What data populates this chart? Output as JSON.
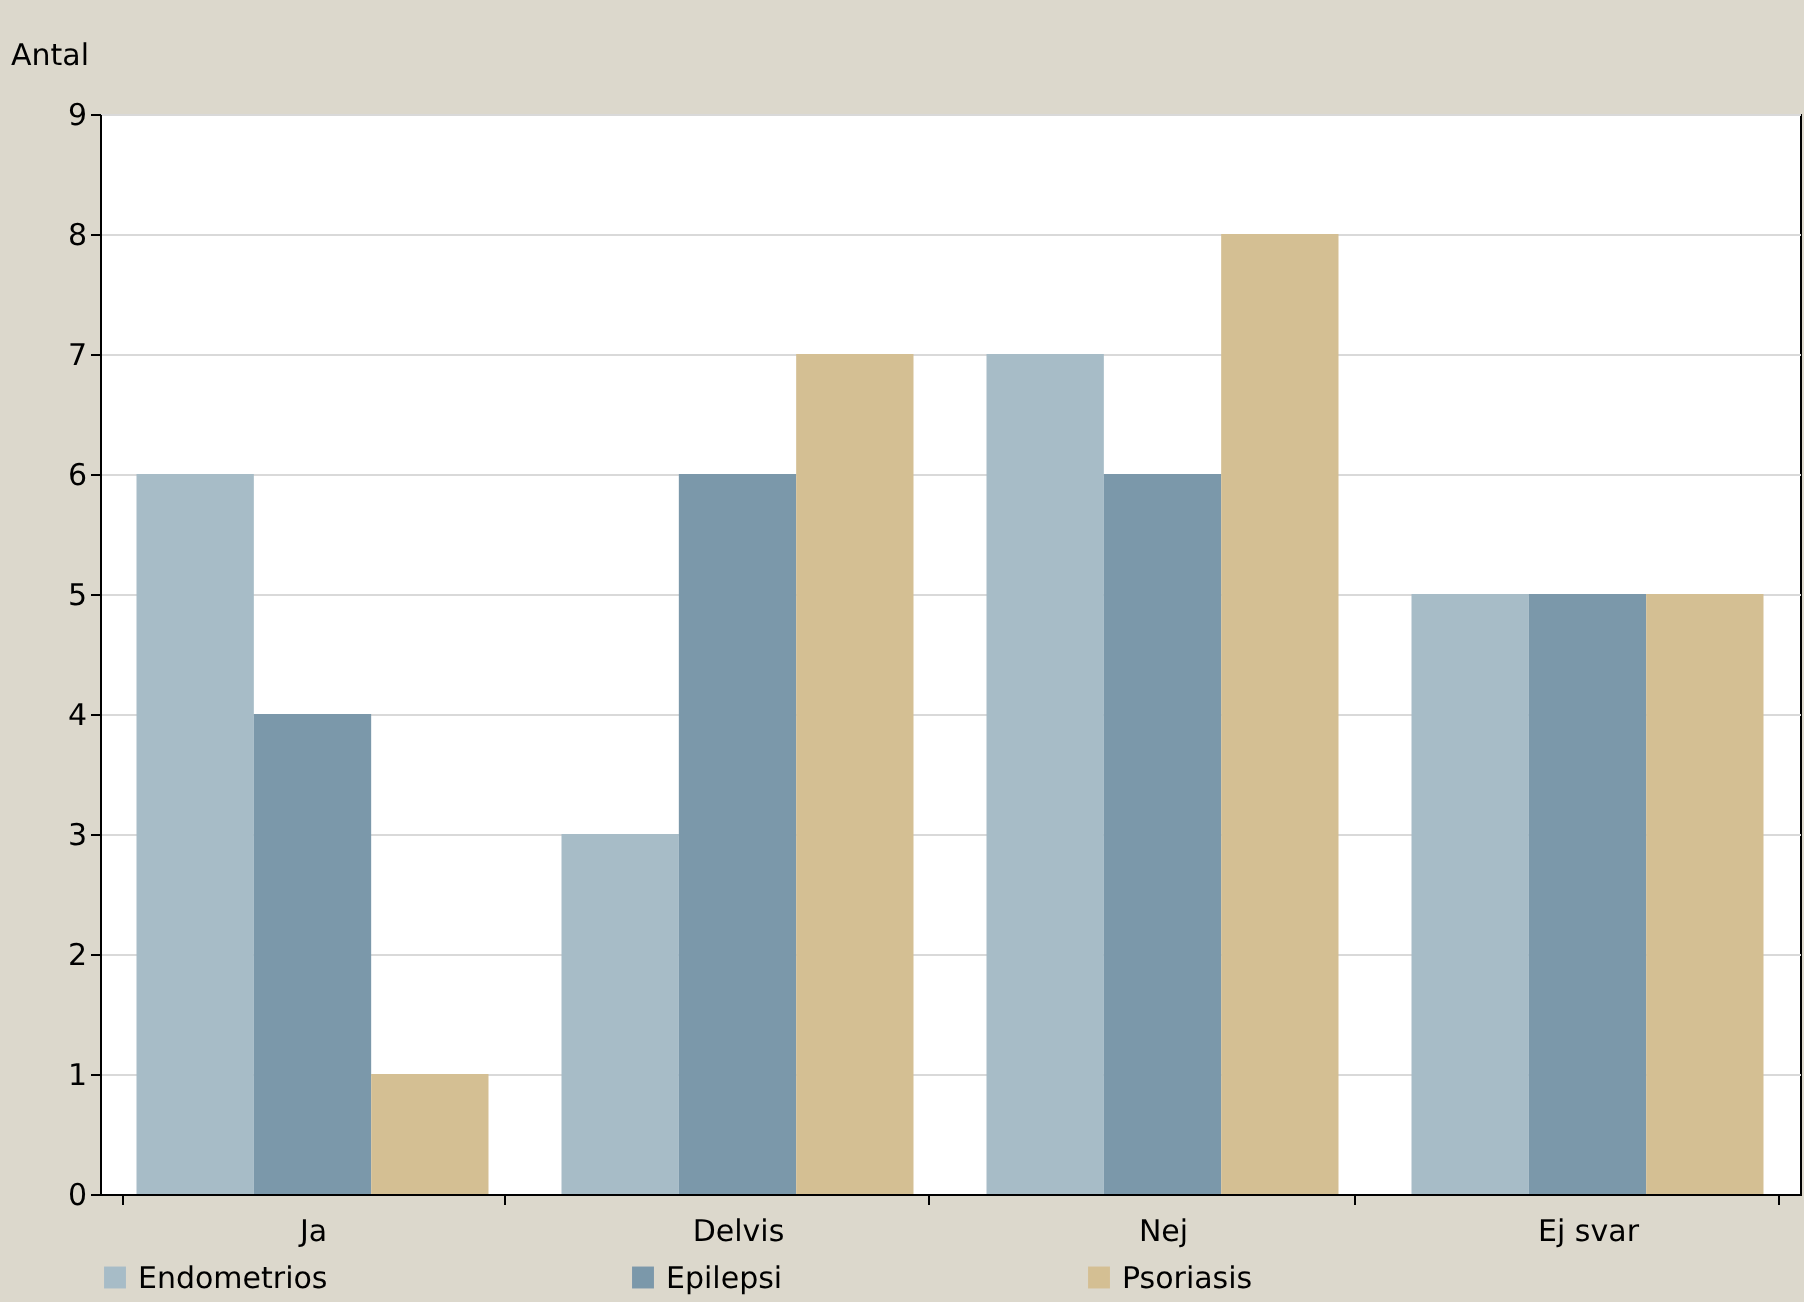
{
  "chart_data": {
    "type": "bar",
    "ylabel": "Antal",
    "categories": [
      "Ja",
      "Delvis",
      "Nej",
      "Ej svar"
    ],
    "series": [
      {
        "name": "Endometrios",
        "color": "#a7bcc7",
        "values": [
          6,
          3,
          7,
          5
        ]
      },
      {
        "name": "Epilepsi",
        "color": "#7b98aa",
        "values": [
          4,
          6,
          6,
          5
        ]
      },
      {
        "name": "Psoriasis",
        "color": "#d4bf93",
        "values": [
          1,
          7,
          8,
          5
        ]
      }
    ],
    "ylim": [
      0,
      9
    ],
    "yticks": [
      0,
      1,
      2,
      3,
      4,
      5,
      6,
      7,
      8,
      9
    ],
    "grid": "y",
    "legend": "bottom"
  }
}
